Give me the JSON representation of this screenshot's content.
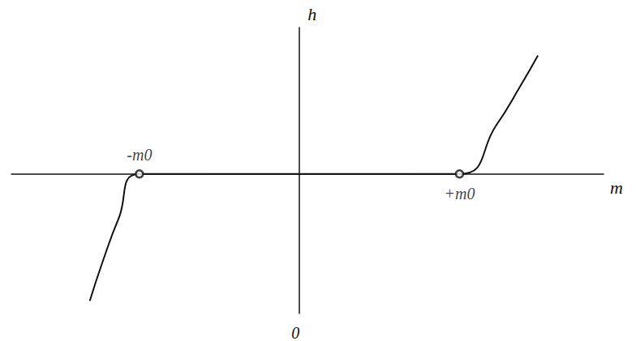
{
  "chart_data": {
    "type": "line",
    "x_label": "m",
    "y_label": "h",
    "xlim": [
      -1.8,
      1.9
    ],
    "ylim": [
      -1,
      1.05
    ],
    "xticks": [
      0
    ],
    "tick_labels": "x",
    "grid": false,
    "color": "#111111",
    "x": [
      -1.31,
      -1.23,
      -1.13,
      -1.0,
      1.0,
      1.23,
      1.38,
      1.49
    ],
    "values": [
      -0.91,
      -0.63,
      -0.32,
      0,
      0,
      0.35,
      0.63,
      0.85
    ],
    "points": [
      {
        "x": -1,
        "y": 0,
        "label": "-m0"
      },
      {
        "x": 1,
        "y": 0,
        "label": "+m0"
      }
    ]
  }
}
